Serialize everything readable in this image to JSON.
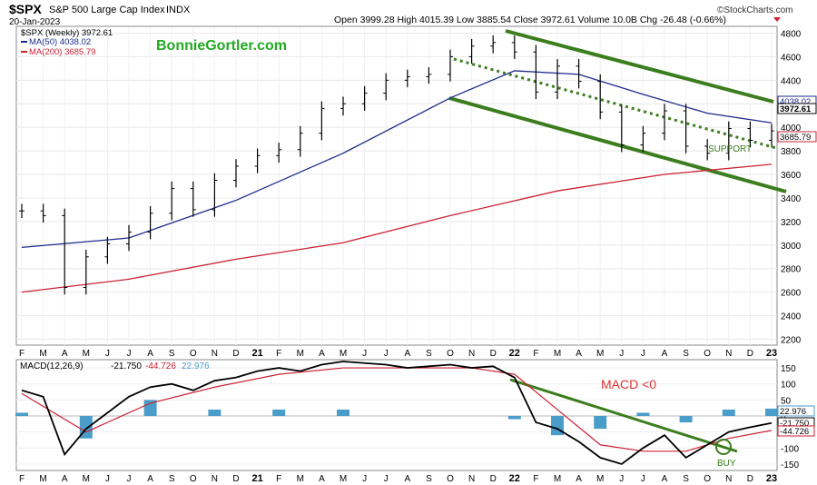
{
  "header": {
    "symbol": "$SPX",
    "name": "S&P 500 Large Cap Index",
    "exchange": "INDX",
    "date": "20-Jan-2023",
    "ohlc": "Open 3999.28  High 4015.39  Low 3885.54  Close 3972.61  Volume 10.0B  Chg -26.48 (-0.66%)",
    "source": "©StockCharts.com"
  },
  "watermark": "BonnieGortler.com",
  "legend": {
    "price": "$SPX (Weekly) 3972.61",
    "ma50": "MA(50) 4038.02",
    "ma200": "MA(200) 3685.79",
    "macd": "MACD(12,26,9)",
    "macd_val": "-21.750",
    "signal_val": "-44.726",
    "hist_val": "22.976"
  },
  "colors": {
    "price": "#000000",
    "ma50": "#1c2a8c",
    "ma200": "#cc2233",
    "trend": "#3c7d1e",
    "hist": "#4a9cc9",
    "annotation_red": "#e23030"
  },
  "annotations": {
    "support": "SUPPORT",
    "macd_note": "MACD <0",
    "buy": "BUY"
  },
  "right_labels": {
    "ma50": "4038.02",
    "close": "3972.61",
    "ma200": "3685.79",
    "hist": "22.976",
    "macd": "-21.750",
    "signal": "-44.726"
  },
  "chart_data": [
    {
      "type": "line",
      "title": "$SPX S&P 500 Large Cap Index INDX (Weekly)",
      "y_ticks": [
        2200,
        2400,
        2600,
        2800,
        3000,
        3200,
        3400,
        3600,
        3800,
        4000,
        4200,
        4400,
        4600,
        4800
      ],
      "ylim": [
        2150,
        4850
      ],
      "x_months": [
        "F",
        "M",
        "A",
        "M",
        "J",
        "J",
        "A",
        "S",
        "O",
        "N",
        "D",
        "21",
        "F",
        "M",
        "A",
        "M",
        "J",
        "J",
        "A",
        "S",
        "O",
        "N",
        "D",
        "22",
        "F",
        "M",
        "A",
        "M",
        "J",
        "J",
        "A",
        "S",
        "O",
        "N",
        "D",
        "23"
      ],
      "series": [
        {
          "name": "$SPX (Weekly)",
          "x": [
            0,
            1,
            2,
            3,
            4,
            5,
            6,
            7,
            8,
            9,
            10,
            11,
            12,
            13,
            14,
            15,
            16,
            17,
            18,
            19,
            20,
            21,
            22,
            23,
            24,
            25,
            26,
            27,
            28,
            29,
            30,
            31,
            32,
            33,
            34,
            35
          ],
          "values": [
            3290,
            3250,
            2640,
            2900,
            3010,
            3110,
            3270,
            3480,
            3300,
            3550,
            3670,
            3760,
            3810,
            3950,
            4160,
            4200,
            4290,
            4400,
            4430,
            4450,
            4600,
            4690,
            4720,
            4640,
            4300,
            4520,
            4390,
            4130,
            3850,
            3950,
            4140,
            3840,
            3780,
            3990,
            3890,
            3970
          ]
        },
        {
          "name": "MA(50)",
          "x": [
            0,
            5,
            10,
            15,
            20,
            23,
            26,
            29,
            32,
            35
          ],
          "values": [
            2980,
            3060,
            3380,
            3780,
            4250,
            4480,
            4450,
            4280,
            4120,
            4038
          ]
        },
        {
          "name": "MA(200)",
          "x": [
            0,
            5,
            10,
            15,
            20,
            25,
            30,
            35
          ],
          "values": [
            2600,
            2710,
            2880,
            3020,
            3250,
            3460,
            3600,
            3686
          ]
        }
      ]
    },
    {
      "type": "line",
      "title": "MACD(12,26,9)",
      "y_ticks": [
        -150,
        -100,
        -50,
        0,
        50,
        100,
        150
      ],
      "ylim": [
        -170,
        170
      ],
      "series": [
        {
          "name": "MACD",
          "x": [
            0,
            1,
            2,
            3,
            4,
            5,
            6,
            7,
            8,
            9,
            10,
            11,
            12,
            13,
            14,
            15,
            16,
            17,
            18,
            19,
            20,
            21,
            22,
            23,
            24,
            25,
            26,
            27,
            28,
            29,
            30,
            31,
            32,
            33,
            34,
            35
          ],
          "values": [
            80,
            60,
            -120,
            -40,
            10,
            60,
            90,
            100,
            80,
            110,
            120,
            140,
            150,
            140,
            160,
            170,
            165,
            160,
            150,
            155,
            160,
            150,
            155,
            120,
            -20,
            -40,
            -80,
            -130,
            -150,
            -100,
            -60,
            -130,
            -90,
            -50,
            -35,
            -22
          ]
        },
        {
          "name": "Signal",
          "x": [
            0,
            3,
            6,
            9,
            12,
            15,
            18,
            21,
            23,
            25,
            27,
            29,
            31,
            33,
            35
          ],
          "values": [
            70,
            -50,
            40,
            90,
            130,
            150,
            150,
            150,
            130,
            20,
            -90,
            -110,
            -110,
            -70,
            -45
          ]
        },
        {
          "name": "Histogram",
          "x": [
            0,
            3,
            6,
            9,
            12,
            15,
            18,
            21,
            23,
            25,
            27,
            29,
            31,
            33,
            35
          ],
          "values": [
            10,
            -70,
            50,
            20,
            20,
            20,
            0,
            0,
            -10,
            -60,
            -40,
            10,
            -20,
            20,
            23
          ]
        }
      ]
    }
  ]
}
